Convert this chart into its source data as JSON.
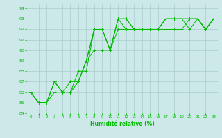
{
  "xlabel": "Humidité relative (%)",
  "bg_color": "#cce8e8",
  "grid_color": "#aacccc",
  "line_color": "#00bb00",
  "xlim": [
    -0.5,
    23.5
  ],
  "ylim": [
    84,
    94.4
  ],
  "yticks": [
    84,
    85,
    86,
    87,
    88,
    89,
    90,
    91,
    92,
    93,
    94
  ],
  "xticks": [
    0,
    1,
    2,
    3,
    4,
    5,
    6,
    7,
    8,
    9,
    10,
    11,
    12,
    13,
    14,
    15,
    16,
    17,
    18,
    19,
    20,
    21,
    22,
    23
  ],
  "series": [
    [
      86,
      85,
      85,
      87,
      86,
      86,
      87,
      89,
      92,
      92,
      90,
      93,
      92,
      92,
      92,
      92,
      92,
      93,
      93,
      93,
      92,
      93,
      92,
      93
    ],
    [
      86,
      85,
      85,
      87,
      86,
      86,
      88,
      88,
      92,
      92,
      90,
      93,
      93,
      92,
      92,
      92,
      92,
      93,
      93,
      93,
      93,
      93,
      92,
      93
    ],
    [
      86,
      85,
      85,
      86,
      86,
      86,
      87,
      89,
      92,
      92,
      90,
      93,
      93,
      92,
      92,
      92,
      92,
      93,
      93,
      93,
      93,
      93,
      92,
      93
    ],
    [
      86,
      85,
      85,
      87,
      86,
      87,
      87,
      89,
      90,
      90,
      90,
      92,
      92,
      92,
      92,
      92,
      92,
      92,
      92,
      92,
      93,
      93,
      92,
      93
    ]
  ]
}
